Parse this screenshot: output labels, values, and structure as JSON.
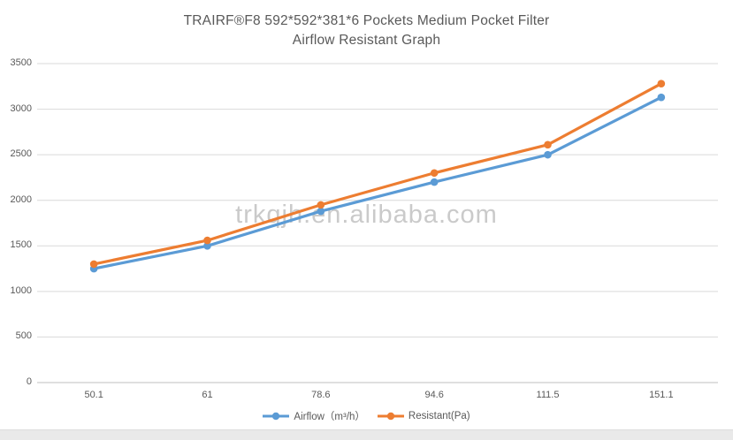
{
  "page": {
    "watermark": "trkqjh.en.alibaba.com"
  },
  "title": {
    "line1": "TRAIRF®F8 592*592*381*6 Pockets Medium Pocket Filter",
    "line2": "Airflow Resistant Graph"
  },
  "chart_data": {
    "type": "line",
    "title": "TRAIRF®F8 592*592*381*6 Pockets Medium Pocket Filter Airflow Resistant Graph",
    "categories": [
      "50.1",
      "61",
      "78.6",
      "94.6",
      "111.5",
      "151.1"
    ],
    "series": [
      {
        "name": "Airflow（m³/h）",
        "color": "#5B9BD5",
        "values": [
          1250,
          1500,
          1880,
          2200,
          2500,
          3130
        ]
      },
      {
        "name": "Resistant(Pa)",
        "color": "#ED7D31",
        "values": [
          1300,
          1560,
          1950,
          2300,
          2610,
          3280
        ]
      }
    ],
    "xlabel": "",
    "ylabel": "",
    "ylim": [
      0,
      3500
    ],
    "ytick_step": 500,
    "grid": true,
    "gridline_color": "#d9d9d9",
    "axis_line_color": "#bfbfbf",
    "tick_label_color": "#595959",
    "legend_position": "bottom",
    "marker": "circle"
  }
}
